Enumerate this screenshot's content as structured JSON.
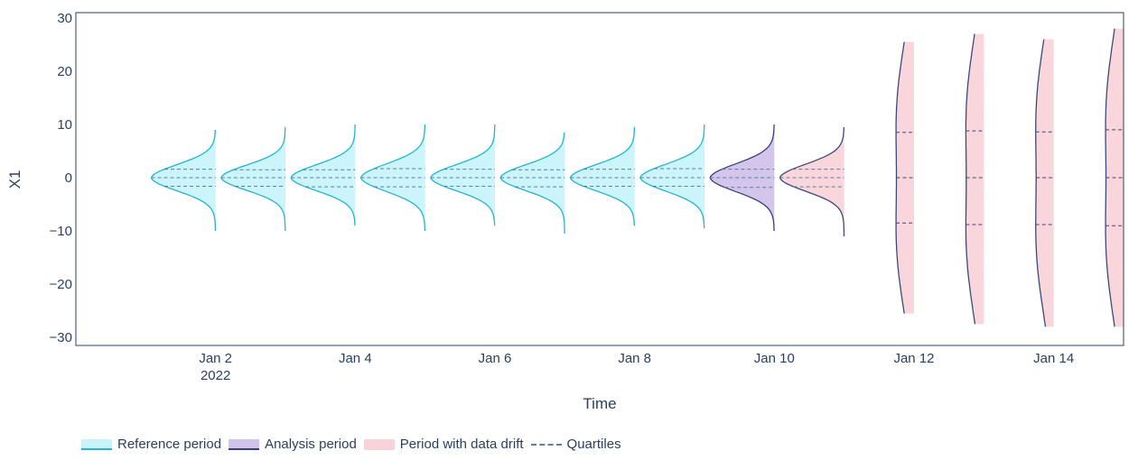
{
  "colors": {
    "reference_fill": "#c8f4fa",
    "reference_line": "#22b5cf",
    "analysis_fill": "#d2c3ea",
    "analysis_line": "#3a3d78",
    "drift_fill": "#f8d4da",
    "drift_line": "#3a4a78",
    "quartile_line": "#5a7fa3",
    "axis_text": "#2a3f5f"
  },
  "legend": {
    "reference": "Reference period",
    "analysis": "Analysis period",
    "drift": "Period with data drift",
    "quartiles": "Quartiles"
  },
  "chart_data": {
    "type": "violin",
    "xlabel": "Time",
    "ylabel": "X1",
    "ylim": [
      -31.5,
      31
    ],
    "yticks": [
      30,
      20,
      10,
      0,
      -10,
      -20,
      -30
    ],
    "ytick_labels": [
      "30",
      "20",
      "10",
      "0",
      "−10",
      "−20",
      "−30"
    ],
    "xticks": [
      {
        "date": "2022-01-02",
        "label": "Jan 2",
        "sublabel": "2022"
      },
      {
        "date": "2022-01-04",
        "label": "Jan 4",
        "sublabel": ""
      },
      {
        "date": "2022-01-06",
        "label": "Jan 6",
        "sublabel": ""
      },
      {
        "date": "2022-01-08",
        "label": "Jan 8",
        "sublabel": ""
      },
      {
        "date": "2022-01-10",
        "label": "Jan 10",
        "sublabel": ""
      },
      {
        "date": "2022-01-12",
        "label": "Jan 12",
        "sublabel": ""
      },
      {
        "date": "2022-01-14",
        "label": "Jan 14",
        "sublabel": ""
      }
    ],
    "xlim": [
      "2021-12-31",
      "2022-01-15"
    ],
    "violins": [
      {
        "date": "2022-01-01",
        "period": "reference",
        "min": -10,
        "max": 9,
        "q1": -1.6,
        "median": 0,
        "q3": 1.6
      },
      {
        "date": "2022-01-02",
        "period": "reference",
        "min": -10,
        "max": 9.5,
        "q1": -1.6,
        "median": 0,
        "q3": 1.5
      },
      {
        "date": "2022-01-03",
        "period": "reference",
        "min": -9,
        "max": 10,
        "q1": -1.7,
        "median": 0,
        "q3": 1.5
      },
      {
        "date": "2022-01-04",
        "period": "reference",
        "min": -10,
        "max": 10,
        "q1": -1.7,
        "median": 0,
        "q3": 1.7
      },
      {
        "date": "2022-01-05",
        "period": "reference",
        "min": -9,
        "max": 10,
        "q1": -1.6,
        "median": 0,
        "q3": 1.6
      },
      {
        "date": "2022-01-06",
        "period": "reference",
        "min": -10.5,
        "max": 8.5,
        "q1": -1.7,
        "median": 0,
        "q3": 1.5
      },
      {
        "date": "2022-01-07",
        "period": "reference",
        "min": -9,
        "max": 9.5,
        "q1": -1.6,
        "median": 0,
        "q3": 1.6
      },
      {
        "date": "2022-01-08",
        "period": "reference",
        "min": -9.5,
        "max": 10,
        "q1": -1.6,
        "median": 0,
        "q3": 1.7
      },
      {
        "date": "2022-01-09",
        "period": "analysis",
        "min": -10,
        "max": 10,
        "q1": -1.8,
        "median": 0,
        "q3": 1.6
      },
      {
        "date": "2022-01-10",
        "period": "drift",
        "min": -11,
        "max": 9.5,
        "q1": -1.7,
        "median": 0,
        "q3": 1.6
      },
      {
        "date": "2022-01-11",
        "period": "drift",
        "min": -25.5,
        "max": 25.5,
        "q1": -8.5,
        "median": 0,
        "q3": 8.5
      },
      {
        "date": "2022-01-12",
        "period": "drift",
        "min": -27.5,
        "max": 27,
        "q1": -8.8,
        "median": 0,
        "q3": 8.8
      },
      {
        "date": "2022-01-13",
        "period": "drift",
        "min": -28,
        "max": 26,
        "q1": -8.8,
        "median": 0,
        "q3": 8.6
      },
      {
        "date": "2022-01-14",
        "period": "drift",
        "min": -28,
        "max": 28,
        "q1": -9,
        "median": 0,
        "q3": 9
      }
    ]
  }
}
